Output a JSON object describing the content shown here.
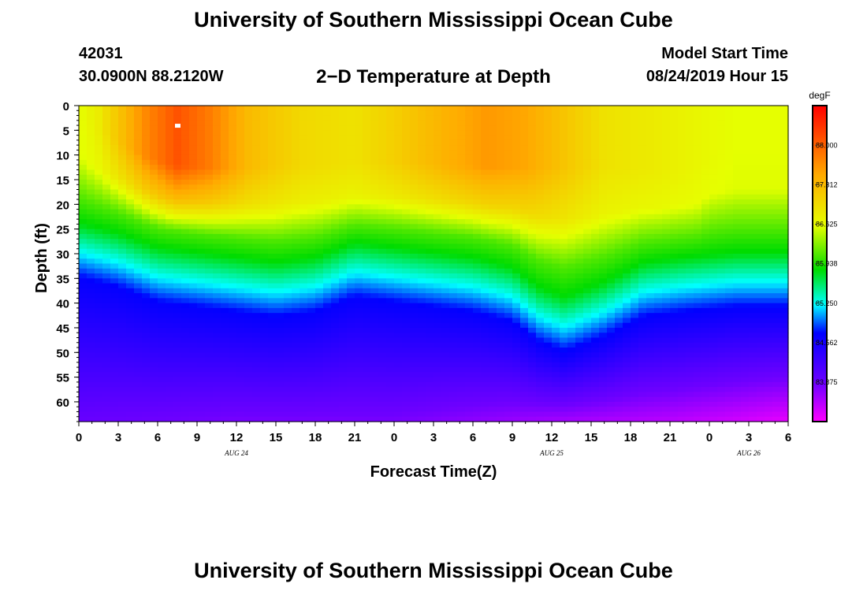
{
  "header": {
    "title_top": "University of Southern Mississippi Ocean Cube",
    "title_bottom": "University of Southern Mississippi Ocean Cube",
    "station_id": "42031",
    "station_coords": "30.0900N 88.2120W",
    "plot_title": "2−D Temperature at Depth",
    "model_start_label": "Model Start Time",
    "model_start_value": "08/24/2019 Hour 15"
  },
  "chart_data": {
    "type": "heatmap",
    "title": "2−D Temperature at Depth",
    "xlabel": "Forecast Time(Z)",
    "ylabel": "Depth (ft)",
    "x_range_hours": [
      0,
      54
    ],
    "y_range_ft": [
      0,
      64
    ],
    "x_tick_labels": [
      "0",
      "3",
      "6",
      "9",
      "12",
      "15",
      "18",
      "21",
      "0",
      "3",
      "6",
      "9",
      "12",
      "15",
      "18",
      "21",
      "0",
      "3",
      "6"
    ],
    "y_tick_labels": [
      "0",
      "5",
      "10",
      "15",
      "20",
      "25",
      "30",
      "35",
      "40",
      "45",
      "50",
      "55",
      "60"
    ],
    "date_labels": [
      {
        "label": "AUG 24",
        "hour": 12
      },
      {
        "label": "AUG 25",
        "hour": 36
      },
      {
        "label": "AUG 26",
        "hour": 51
      }
    ],
    "colorbar": {
      "unit": "degF",
      "vmin": 83.19,
      "vmax": 88.69,
      "tick_values": [
        88.0,
        87.312,
        86.625,
        85.938,
        85.25,
        84.562,
        83.875
      ],
      "tick_labels": [
        "88.000",
        "87.312",
        "86.625",
        "85.938",
        "85.250",
        "84.562",
        "83.875"
      ]
    },
    "surface_temp_degF": [
      {
        "hour": 0,
        "value": 86.6
      },
      {
        "hour": 1.5,
        "value": 86.8
      },
      {
        "hour": 3,
        "value": 87.2
      },
      {
        "hour": 5,
        "value": 87.7
      },
      {
        "hour": 7.5,
        "value": 88.1
      },
      {
        "hour": 10,
        "value": 87.8
      },
      {
        "hour": 13,
        "value": 87.3
      },
      {
        "hour": 17,
        "value": 87.0
      },
      {
        "hour": 21,
        "value": 86.9
      },
      {
        "hour": 24,
        "value": 87.1
      },
      {
        "hour": 28,
        "value": 87.4
      },
      {
        "hour": 31,
        "value": 87.6
      },
      {
        "hour": 34,
        "value": 87.5
      },
      {
        "hour": 37,
        "value": 87.2
      },
      {
        "hour": 40,
        "value": 86.9
      },
      {
        "hour": 44,
        "value": 86.8
      },
      {
        "hour": 47,
        "value": 86.7
      },
      {
        "hour": 50,
        "value": 86.6
      },
      {
        "hour": 54,
        "value": 86.6
      }
    ],
    "thermocline_depth_ft": [
      {
        "hour": 0,
        "value": 29
      },
      {
        "hour": 3,
        "value": 31
      },
      {
        "hour": 6,
        "value": 34
      },
      {
        "hour": 9,
        "value": 35
      },
      {
        "hour": 12,
        "value": 36
      },
      {
        "hour": 15,
        "value": 37
      },
      {
        "hour": 18,
        "value": 36
      },
      {
        "hour": 21,
        "value": 33
      },
      {
        "hour": 24,
        "value": 34
      },
      {
        "hour": 27,
        "value": 35
      },
      {
        "hour": 30,
        "value": 36
      },
      {
        "hour": 33,
        "value": 38
      },
      {
        "hour": 35,
        "value": 42
      },
      {
        "hour": 37,
        "value": 44
      },
      {
        "hour": 40,
        "value": 41
      },
      {
        "hour": 43,
        "value": 37
      },
      {
        "hour": 46,
        "value": 36
      },
      {
        "hour": 50,
        "value": 35
      },
      {
        "hour": 54,
        "value": 35
      }
    ],
    "mixed_layer_depth_ft": [
      {
        "hour": 0,
        "value": 2
      },
      {
        "hour": 1,
        "value": 6
      },
      {
        "hour": 3,
        "value": 12
      },
      {
        "hour": 5,
        "value": 17
      },
      {
        "hour": 7,
        "value": 20
      },
      {
        "hour": 10,
        "value": 21
      },
      {
        "hour": 13,
        "value": 21
      },
      {
        "hour": 16,
        "value": 20
      },
      {
        "hour": 20,
        "value": 20
      },
      {
        "hour": 24,
        "value": 19
      },
      {
        "hour": 28,
        "value": 20
      },
      {
        "hour": 32,
        "value": 21
      },
      {
        "hour": 36,
        "value": 21
      },
      {
        "hour": 40,
        "value": 21
      },
      {
        "hour": 44,
        "value": 22
      },
      {
        "hour": 47,
        "value": 21
      },
      {
        "hour": 48,
        "value": 16
      },
      {
        "hour": 50,
        "value": 14
      },
      {
        "hour": 54,
        "value": 14
      }
    ],
    "bottom_temp_degF": [
      {
        "hour": 0,
        "value": 83.9
      },
      {
        "hour": 12,
        "value": 83.8
      },
      {
        "hour": 24,
        "value": 83.8
      },
      {
        "hour": 36,
        "value": 83.6
      },
      {
        "hour": 45,
        "value": 83.5
      },
      {
        "hour": 50,
        "value": 83.4
      },
      {
        "hour": 54,
        "value": 83.3
      }
    ],
    "max_marker": {
      "hour": 7.5,
      "depth_ft": 4
    }
  }
}
